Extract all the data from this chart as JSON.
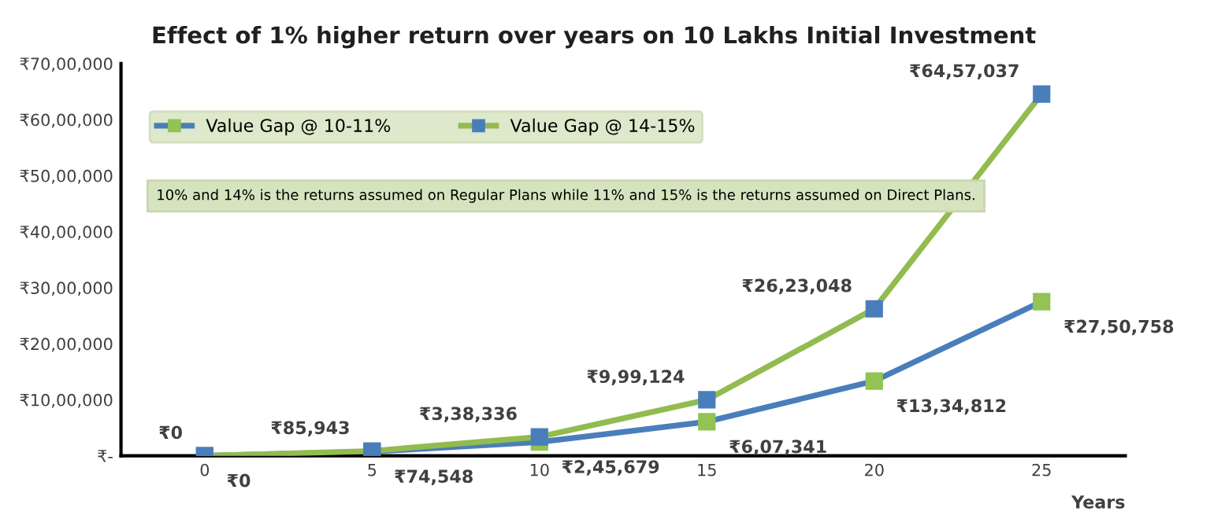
{
  "chart_data": {
    "type": "line",
    "title": "Effect of 1% higher return over years on 10 Lakhs Initial Investment",
    "xlabel": "Years",
    "x": [
      0,
      5,
      10,
      15,
      20,
      25
    ],
    "series": [
      {
        "name": "Value Gap @ 10-11%",
        "color": "#4a7ebb",
        "colors": [
          "#4a7ebb",
          "#4a7ebb",
          "#92c353",
          "#92c353",
          "#92c353",
          "#92c353"
        ],
        "values": [
          0,
          74548,
          245679,
          607341,
          1334812,
          2750758
        ],
        "value_labels": [
          "₹0",
          "₹74,548",
          "₹2,45,679",
          "₹6,07,341",
          "₹13,34,812",
          "₹27,50,758"
        ]
      },
      {
        "name": "Value Gap @ 14-15%",
        "color": "#92bb50",
        "colors": [
          "#4a7ebb",
          "#4a7ebb",
          "#4a7ebb",
          "#4a7ebb",
          "#4a7ebb",
          "#4a7ebb"
        ],
        "values": [
          0,
          85943,
          338336,
          999124,
          2623048,
          6457037
        ],
        "value_labels": [
          "₹0",
          "₹85,943",
          "₹3,38,336",
          "₹9,99,124",
          "₹26,23,048",
          "₹64,57,037"
        ]
      }
    ],
    "xlim": [
      -2.5,
      27.5
    ],
    "ylim": [
      0,
      7000000
    ],
    "xticks": [
      0,
      5,
      10,
      15,
      20,
      25
    ],
    "yticks": [
      {
        "value": 0,
        "label": "₹-"
      },
      {
        "value": 1000000,
        "label": "₹10,00,000"
      },
      {
        "value": 2000000,
        "label": "₹20,00,000"
      },
      {
        "value": 3000000,
        "label": "₹30,00,000"
      },
      {
        "value": 4000000,
        "label": "₹40,00,000"
      },
      {
        "value": 5000000,
        "label": "₹50,00,000"
      },
      {
        "value": 6000000,
        "label": "₹60,00,000"
      },
      {
        "value": 7000000,
        "label": "₹70,00,000"
      }
    ],
    "annotations": [
      "10% and 14% is the returns assumed on Regular Plans while 11% and 15% is the returns assumed on Direct Plans."
    ],
    "legend": "top left",
    "marker": "square",
    "line_style": "solid",
    "grid": false
  }
}
